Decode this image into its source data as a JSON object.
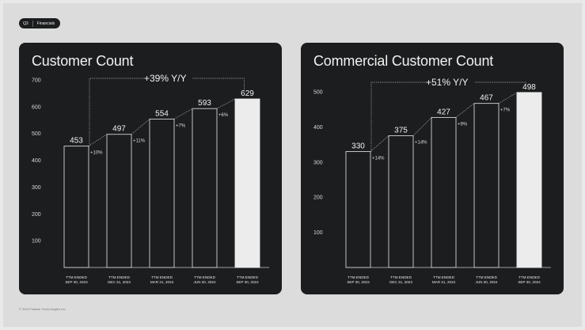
{
  "header": {
    "page": "Q3",
    "section": "Financials"
  },
  "footer": "© 2024 Palantir Technologies Inc.",
  "chart_data": [
    {
      "type": "bar",
      "title": "Customer Count",
      "categories": [
        [
          "TTM ENDED",
          "SEP 30, 2023"
        ],
        [
          "TTM ENDED",
          "DEC 31, 2023"
        ],
        [
          "TTM ENDED",
          "MAR 31, 2024"
        ],
        [
          "TTM ENDED",
          "JUN 30, 2024"
        ],
        [
          "TTM ENDED",
          "SEP 30, 2024"
        ]
      ],
      "values": [
        453,
        497,
        554,
        593,
        629
      ],
      "growth_labels": [
        "+10%",
        "+11%",
        "+7%",
        "+6%"
      ],
      "yoy_label": "+39% Y/Y",
      "yticks": [
        100,
        200,
        300,
        400,
        500,
        600,
        700
      ],
      "ylim": [
        0,
        700
      ],
      "grid": false,
      "legend": "none",
      "colors": {
        "bar": "#1b1d1e",
        "bar_outline": "#d4d4d4",
        "highlight": "#ececec"
      }
    },
    {
      "type": "bar",
      "title": "Commercial Customer Count",
      "categories": [
        [
          "TTM ENDED",
          "SEP 30, 2023"
        ],
        [
          "TTM ENDED",
          "DEC 31, 2023"
        ],
        [
          "TTM ENDED",
          "MAR 31, 2024"
        ],
        [
          "TTM ENDED",
          "JUN 30, 2024"
        ],
        [
          "TTM ENDED",
          "SEP 30, 2024"
        ]
      ],
      "values": [
        330,
        375,
        427,
        467,
        498
      ],
      "growth_labels": [
        "+14%",
        "+14%",
        "+9%",
        "+7%"
      ],
      "yoy_label": "+51% Y/Y",
      "yticks": [
        100,
        200,
        300,
        400,
        500
      ],
      "ylim": [
        0,
        500
      ],
      "grid": false,
      "legend": "none",
      "colors": {
        "bar": "#1b1d1e",
        "bar_outline": "#d4d4d4",
        "highlight": "#ececec"
      }
    }
  ]
}
